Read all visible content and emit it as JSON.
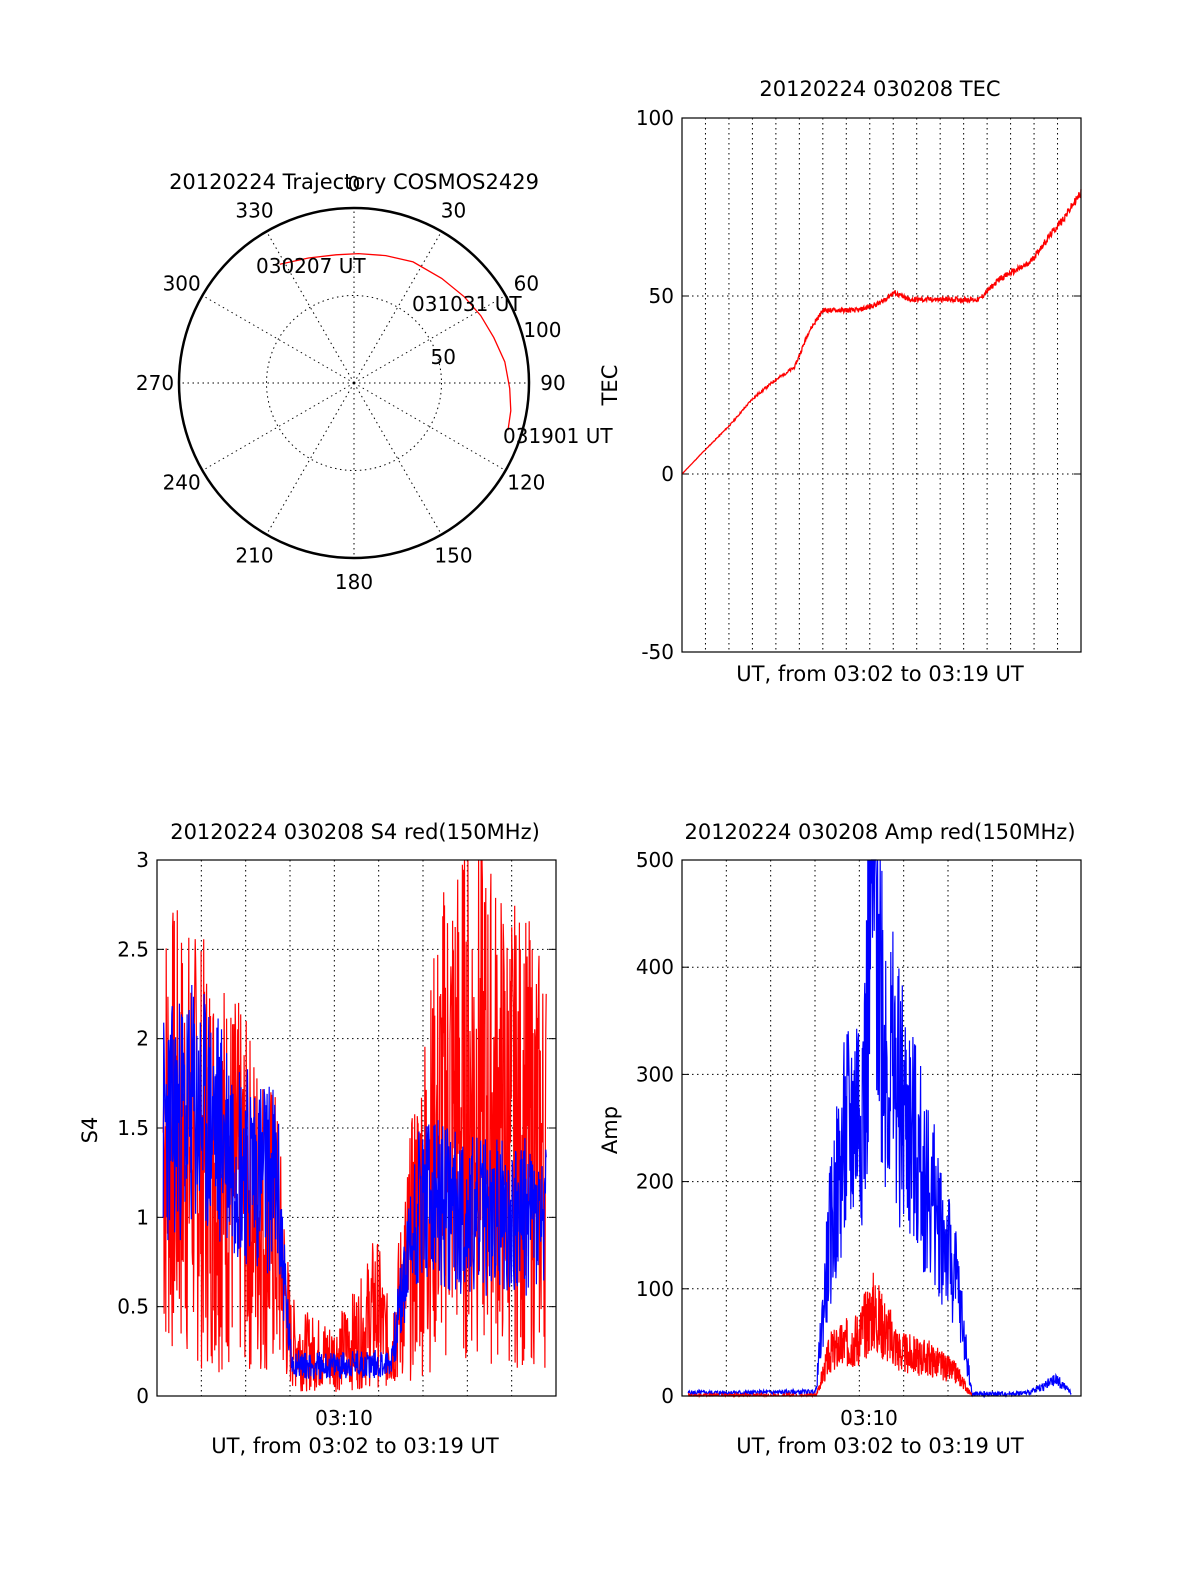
{
  "chart_data": [
    {
      "type": "polar",
      "title": "20120224 Trajectory COSMOS2429",
      "angle_labels": [
        "0",
        "30",
        "60",
        "90",
        "120",
        "150",
        "180",
        "210",
        "240",
        "270",
        "300",
        "330"
      ],
      "radius_labels": [
        "50",
        "100"
      ],
      "rlim": [
        0,
        100
      ],
      "grid": true,
      "series": [
        {
          "color": "#ff0000",
          "points": [
            {
              "az": 328,
              "r": 80
            },
            {
              "az": 340,
              "r": 76
            },
            {
              "az": 352,
              "r": 74
            },
            {
              "az": 2,
              "r": 74
            },
            {
              "az": 14,
              "r": 75
            },
            {
              "az": 26,
              "r": 77
            },
            {
              "az": 40,
              "r": 78
            },
            {
              "az": 52,
              "r": 80
            },
            {
              "az": 62,
              "r": 82
            },
            {
              "az": 72,
              "r": 84
            },
            {
              "az": 82,
              "r": 87
            },
            {
              "az": 92,
              "r": 89
            },
            {
              "az": 100,
              "r": 91
            },
            {
              "az": 107,
              "r": 92
            }
          ]
        }
      ],
      "annotations": [
        "030207 UT",
        "031031 UT",
        "031901 UT"
      ]
    },
    {
      "type": "line",
      "title": "20120224 030208 TEC",
      "xlabel": "UT, from 03:02 to 03:19 UT",
      "ylabel": "TEC",
      "ylim": [
        -50,
        100
      ],
      "y_ticks": [
        "-50",
        "0",
        "50",
        "100"
      ],
      "xlim": [
        3.0356,
        3.3169
      ],
      "grid": true,
      "series": [
        {
          "color": "#ff0000",
          "x": [
            3.0356,
            3.05,
            3.07,
            3.085,
            3.1,
            3.115,
            3.125,
            3.135,
            3.145,
            3.16,
            3.175,
            3.185,
            3.195,
            3.2,
            3.21,
            3.23,
            3.245,
            3.26,
            3.28,
            3.295,
            3.305,
            3.3169
          ],
          "y": [
            0,
            6,
            14,
            21,
            26,
            30,
            40,
            46,
            46,
            46,
            48,
            51,
            49,
            49,
            49,
            49,
            49,
            55,
            59,
            67,
            72,
            79
          ]
        }
      ]
    },
    {
      "type": "line",
      "title": "20120224 030208 S4 red(150MHz)",
      "xlabel": "UT, from 03:02 to 03:19 UT",
      "ylabel": "S4",
      "ylim": [
        0,
        3
      ],
      "y_ticks": [
        "0",
        "0.5",
        "1",
        "1.5",
        "2",
        "2.5",
        "3"
      ],
      "x_tick_labels": [
        "03:10"
      ],
      "xlim": [
        3.0356,
        3.3169
      ],
      "grid": true,
      "series": [
        {
          "color": "#ff0000",
          "x": [
            3.04,
            3.06,
            3.08,
            3.1,
            3.12,
            3.13,
            3.14,
            3.16,
            3.18,
            3.19,
            3.2,
            3.22,
            3.24,
            3.26,
            3.28,
            3.3,
            3.31
          ],
          "y": [
            1.5,
            1.4,
            1.3,
            1.1,
            0.9,
            0.3,
            0.25,
            0.22,
            0.35,
            0.5,
            0.25,
            1.0,
            1.6,
            1.7,
            1.5,
            1.4,
            1.3
          ]
        },
        {
          "color": "#0000ff",
          "x": [
            3.04,
            3.06,
            3.08,
            3.1,
            3.12,
            3.13,
            3.14,
            3.16,
            3.18,
            3.2,
            3.22,
            3.24,
            3.26,
            3.28,
            3.3,
            3.31
          ],
          "y": [
            1.5,
            1.6,
            1.5,
            1.3,
            1.2,
            0.2,
            0.17,
            0.17,
            0.18,
            0.18,
            1.1,
            1.05,
            1.0,
            1.0,
            1.0,
            0.95
          ]
        }
      ]
    },
    {
      "type": "line",
      "title": "20120224 030208 Amp red(150MHz)",
      "xlabel": "UT, from 03:02 to 03:19 UT",
      "ylabel": "Amp",
      "ylim": [
        0,
        500
      ],
      "y_ticks": [
        "0",
        "100",
        "200",
        "300",
        "400",
        "500"
      ],
      "x_tick_labels": [
        "03:10"
      ],
      "xlim": [
        3.0356,
        3.3169
      ],
      "grid": true,
      "series": [
        {
          "color": "#0000ff",
          "x": [
            3.04,
            3.08,
            3.13,
            3.14,
            3.15,
            3.165,
            3.17,
            3.18,
            3.2,
            3.22,
            3.23,
            3.24,
            3.26,
            3.28,
            3.3,
            3.31
          ],
          "y": [
            3,
            3,
            4,
            150,
            230,
            300,
            500,
            320,
            230,
            150,
            100,
            2,
            2,
            3,
            15,
            3
          ]
        },
        {
          "color": "#ff0000",
          "x": [
            3.04,
            3.13,
            3.14,
            3.16,
            3.17,
            3.19,
            3.21,
            3.23,
            3.24
          ],
          "y": [
            0,
            0,
            40,
            55,
            80,
            40,
            35,
            20,
            0
          ]
        }
      ]
    }
  ]
}
